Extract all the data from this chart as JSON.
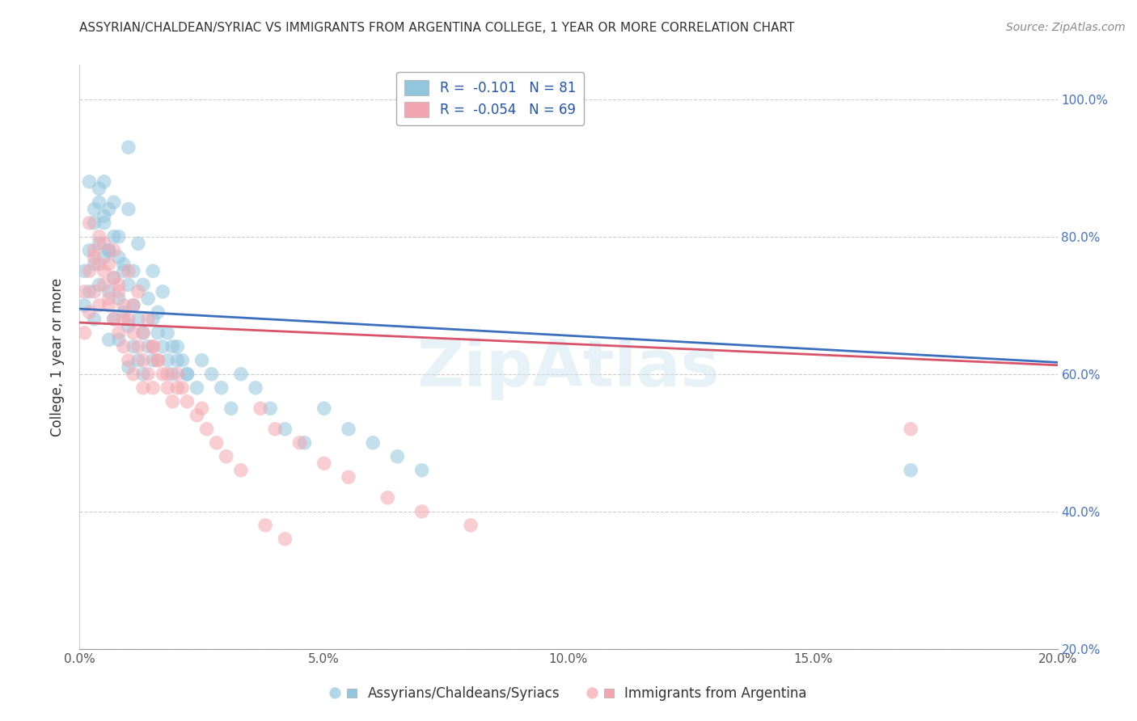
{
  "title": "ASSYRIAN/CHALDEAN/SYRIAC VS IMMIGRANTS FROM ARGENTINA COLLEGE, 1 YEAR OR MORE CORRELATION CHART",
  "source": "Source: ZipAtlas.com",
  "ylabel": "College, 1 year or more",
  "legend_blue_label": "Assyrians/Chaldeans/Syriacs",
  "legend_pink_label": "Immigrants from Argentina",
  "R_blue": -0.101,
  "N_blue": 81,
  "R_pink": -0.054,
  "N_pink": 69,
  "blue_color": "#92c5de",
  "pink_color": "#f4a6b0",
  "blue_line_color": "#3a6fbd",
  "pink_line_color": "#d9536a",
  "xlim": [
    0.0,
    0.2
  ],
  "ylim": [
    0.2,
    1.05
  ],
  "xticks": [
    0.0,
    0.05,
    0.1,
    0.15,
    0.2
  ],
  "xtick_labels": [
    "0.0%",
    "5.0%",
    "10.0%",
    "15.0%",
    "20.0%"
  ],
  "yticks": [
    0.2,
    0.4,
    0.6,
    0.8,
    1.0
  ],
  "ytick_labels_left": [
    "",
    "",
    "",
    "",
    ""
  ],
  "ytick_labels_right": [
    "20.0%",
    "40.0%",
    "60.0%",
    "80.0%",
    "100.0%"
  ],
  "watermark": "ZipAtlas",
  "blue_line_x0": 0.0,
  "blue_line_y0": 0.695,
  "blue_line_x1": 0.2,
  "blue_line_y1": 0.617,
  "pink_line_x0": 0.0,
  "pink_line_y0": 0.675,
  "pink_line_x1": 0.2,
  "pink_line_y1": 0.613,
  "blue_x": [
    0.001,
    0.001,
    0.002,
    0.002,
    0.003,
    0.003,
    0.003,
    0.004,
    0.004,
    0.004,
    0.005,
    0.005,
    0.005,
    0.006,
    0.006,
    0.006,
    0.006,
    0.007,
    0.007,
    0.007,
    0.008,
    0.008,
    0.008,
    0.009,
    0.009,
    0.01,
    0.01,
    0.01,
    0.01,
    0.011,
    0.011,
    0.012,
    0.012,
    0.013,
    0.013,
    0.014,
    0.015,
    0.015,
    0.016,
    0.017,
    0.018,
    0.019,
    0.02,
    0.021,
    0.022,
    0.024,
    0.025,
    0.027,
    0.029,
    0.031,
    0.033,
    0.036,
    0.039,
    0.042,
    0.046,
    0.05,
    0.055,
    0.06,
    0.065,
    0.07,
    0.002,
    0.003,
    0.004,
    0.005,
    0.006,
    0.007,
    0.008,
    0.009,
    0.01,
    0.011,
    0.012,
    0.013,
    0.014,
    0.015,
    0.016,
    0.017,
    0.018,
    0.019,
    0.02,
    0.022,
    0.17
  ],
  "blue_y": [
    0.75,
    0.7,
    0.78,
    0.72,
    0.82,
    0.76,
    0.68,
    0.85,
    0.79,
    0.73,
    0.88,
    0.83,
    0.77,
    0.84,
    0.78,
    0.72,
    0.65,
    0.8,
    0.74,
    0.68,
    0.77,
    0.71,
    0.65,
    0.75,
    0.69,
    0.73,
    0.67,
    0.61,
    0.93,
    0.7,
    0.64,
    0.68,
    0.62,
    0.66,
    0.6,
    0.64,
    0.68,
    0.62,
    0.66,
    0.64,
    0.62,
    0.6,
    0.64,
    0.62,
    0.6,
    0.58,
    0.62,
    0.6,
    0.58,
    0.55,
    0.6,
    0.58,
    0.55,
    0.52,
    0.5,
    0.55,
    0.52,
    0.5,
    0.48,
    0.46,
    0.88,
    0.84,
    0.87,
    0.82,
    0.78,
    0.85,
    0.8,
    0.76,
    0.84,
    0.75,
    0.79,
    0.73,
    0.71,
    0.75,
    0.69,
    0.72,
    0.66,
    0.64,
    0.62,
    0.6,
    0.46
  ],
  "pink_x": [
    0.001,
    0.001,
    0.002,
    0.002,
    0.003,
    0.003,
    0.004,
    0.004,
    0.005,
    0.005,
    0.006,
    0.006,
    0.007,
    0.007,
    0.008,
    0.008,
    0.009,
    0.009,
    0.01,
    0.01,
    0.011,
    0.011,
    0.012,
    0.013,
    0.013,
    0.014,
    0.015,
    0.015,
    0.016,
    0.017,
    0.018,
    0.019,
    0.02,
    0.021,
    0.022,
    0.024,
    0.026,
    0.028,
    0.03,
    0.033,
    0.037,
    0.04,
    0.045,
    0.05,
    0.055,
    0.063,
    0.07,
    0.08,
    0.038,
    0.042,
    0.002,
    0.003,
    0.004,
    0.005,
    0.006,
    0.007,
    0.008,
    0.009,
    0.01,
    0.011,
    0.012,
    0.013,
    0.014,
    0.015,
    0.016,
    0.018,
    0.02,
    0.025,
    0.17
  ],
  "pink_y": [
    0.72,
    0.66,
    0.75,
    0.69,
    0.78,
    0.72,
    0.76,
    0.7,
    0.79,
    0.73,
    0.76,
    0.7,
    0.74,
    0.68,
    0.72,
    0.66,
    0.7,
    0.64,
    0.68,
    0.62,
    0.66,
    0.6,
    0.64,
    0.62,
    0.58,
    0.6,
    0.64,
    0.58,
    0.62,
    0.6,
    0.58,
    0.56,
    0.6,
    0.58,
    0.56,
    0.54,
    0.52,
    0.5,
    0.48,
    0.46,
    0.55,
    0.52,
    0.5,
    0.47,
    0.45,
    0.42,
    0.4,
    0.38,
    0.38,
    0.36,
    0.82,
    0.77,
    0.8,
    0.75,
    0.71,
    0.78,
    0.73,
    0.68,
    0.75,
    0.7,
    0.72,
    0.66,
    0.68,
    0.64,
    0.62,
    0.6,
    0.58,
    0.55,
    0.52
  ]
}
